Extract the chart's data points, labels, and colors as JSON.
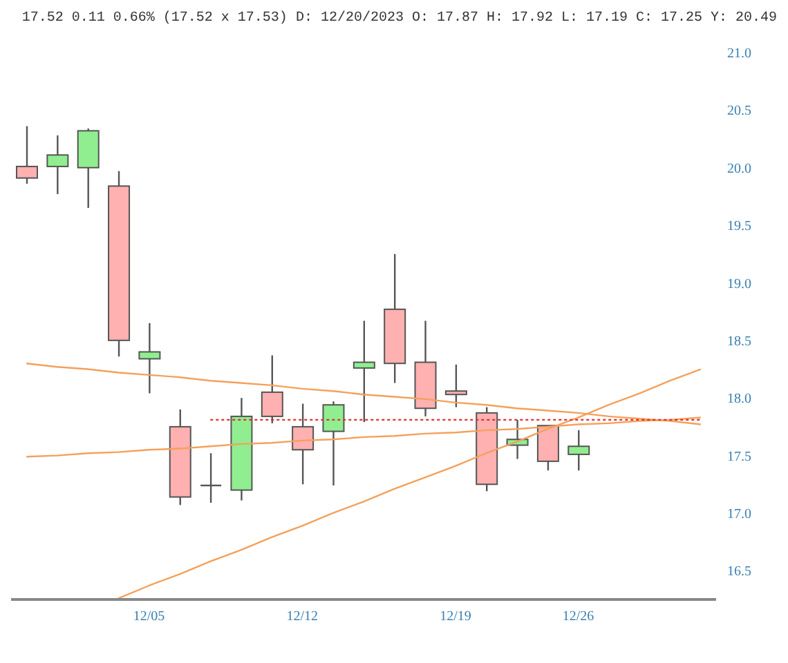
{
  "chart_data": {
    "type": "candlestick",
    "title": "17.52 0.11 0.66% (17.52 x 17.53) D: 12/20/2023 O: 17.87 H: 17.92 L: 17.19 C: 17.25 Y: 20.49",
    "categories": [
      null,
      null,
      null,
      null,
      "12/05",
      null,
      null,
      null,
      null,
      "12/12",
      null,
      null,
      null,
      null,
      "12/19",
      null,
      null,
      null,
      "12/26",
      null,
      null,
      null,
      null
    ],
    "ohlc": [
      [
        20.01,
        20.36,
        19.86,
        19.91
      ],
      [
        20.01,
        20.28,
        19.77,
        20.11
      ],
      [
        20.0,
        20.34,
        19.65,
        20.32
      ],
      [
        19.84,
        19.97,
        18.36,
        18.5
      ],
      [
        18.34,
        18.65,
        18.04,
        18.4
      ],
      [
        17.75,
        17.9,
        17.07,
        17.14
      ],
      [
        17.24,
        17.52,
        17.09,
        17.24
      ],
      [
        17.2,
        18.0,
        17.11,
        17.84
      ],
      [
        18.05,
        18.37,
        17.78,
        17.84
      ],
      [
        17.75,
        17.95,
        17.25,
        17.55
      ],
      [
        17.71,
        17.97,
        17.24,
        17.94
      ],
      [
        18.26,
        18.67,
        17.79,
        18.31
      ],
      [
        18.77,
        19.25,
        18.13,
        18.3
      ],
      [
        18.31,
        18.67,
        17.84,
        17.91
      ],
      [
        18.06,
        18.29,
        17.92,
        18.03
      ],
      [
        17.87,
        17.92,
        17.19,
        17.25
      ],
      [
        17.59,
        17.81,
        17.47,
        17.64
      ],
      [
        17.76,
        17.76,
        17.37,
        17.45
      ],
      [
        17.51,
        17.72,
        17.37,
        17.58
      ],
      null,
      null,
      null,
      null
    ],
    "colors": [
      "#ffb0b0",
      "#90ee90",
      "#90ee90",
      "#ffb0b0",
      "#90ee90",
      "#ffb0b0",
      "#555555",
      "#90ee90",
      "#ffb0b0",
      "#ffb0b0",
      "#90ee90",
      "#90ee90",
      "#ffb0b0",
      "#ffb0b0",
      "#ffb0b0",
      "#ffb0b0",
      "#90ee90",
      "#ffb0b0",
      "#90ee90",
      null,
      null,
      null,
      null
    ],
    "series": [
      {
        "type": "line",
        "color": "#f5a05a",
        "values": [
          18.3,
          18.27,
          18.25,
          18.22,
          18.2,
          18.18,
          18.15,
          18.13,
          18.11,
          18.08,
          18.06,
          18.03,
          18.01,
          17.99,
          17.96,
          17.94,
          17.91,
          17.89,
          17.87,
          17.84,
          17.82,
          17.8,
          17.77
        ]
      },
      {
        "type": "line",
        "color": "#f5a05a",
        "values": [
          17.49,
          17.5,
          17.52,
          17.53,
          17.55,
          17.56,
          17.58,
          17.6,
          17.61,
          17.63,
          17.64,
          17.66,
          17.67,
          17.69,
          17.7,
          17.72,
          17.73,
          17.75,
          17.77,
          17.78,
          17.8,
          17.81,
          17.83
        ]
      },
      {
        "type": "line",
        "color": "#f5a05a",
        "values": [
          null,
          null,
          null,
          16.26,
          16.37,
          16.47,
          16.58,
          16.68,
          16.79,
          16.89,
          17.0,
          17.1,
          17.21,
          17.31,
          17.41,
          17.52,
          17.62,
          17.73,
          17.83,
          17.94,
          18.04,
          18.15,
          18.25
        ]
      },
      {
        "type": "line",
        "color": "#e03030",
        "line_style": "dotted",
        "values": [
          null,
          null,
          null,
          null,
          null,
          null,
          17.81,
          17.81,
          17.81,
          17.81,
          17.81,
          17.81,
          17.81,
          17.81,
          17.81,
          17.81,
          17.81,
          17.81,
          17.81,
          17.81,
          17.81,
          17.81,
          17.81
        ]
      }
    ],
    "ylim": [
      16.25,
      21
    ],
    "yticks": [
      {
        "value": 16.5,
        "label": "16.5"
      },
      {
        "value": 17,
        "label": "17.0"
      },
      {
        "value": 17.5,
        "label": "17.5"
      },
      {
        "value": 18,
        "label": "18.0"
      },
      {
        "value": 18.5,
        "label": "18.5"
      },
      {
        "value": 19,
        "label": "19.0"
      },
      {
        "value": 19.5,
        "label": "19.5"
      },
      {
        "value": 20,
        "label": "20.0"
      },
      {
        "value": 20.5,
        "label": "20.5"
      },
      {
        "value": 21,
        "label": "21.0"
      }
    ],
    "grid": false,
    "legend": false
  }
}
